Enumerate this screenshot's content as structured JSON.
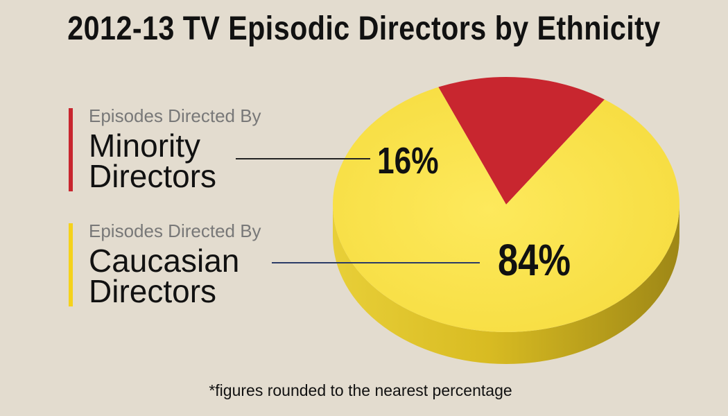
{
  "chart_data": {
    "type": "pie",
    "title": "2012-13 TV Episodic Directors by Ethnicity",
    "footnote": "*figures rounded to the nearest percentage",
    "slices": [
      {
        "caption": "Episodes Directed By",
        "label_line1": "Minority",
        "label_line2": "Directors",
        "value": 16,
        "value_label": "16%",
        "color": "#c8262f"
      },
      {
        "caption": "Episodes Directed By",
        "label_line1": "Caucasian",
        "label_line2": "Directors",
        "value": 84,
        "value_label": "84%",
        "color": "#fbe54d"
      }
    ],
    "colors": {
      "background": "#e3dccf",
      "minority": "#c8262f",
      "caucasian": "#fbe54d",
      "minority_line": "#222222",
      "caucasian_line": "#2b3b66"
    }
  }
}
